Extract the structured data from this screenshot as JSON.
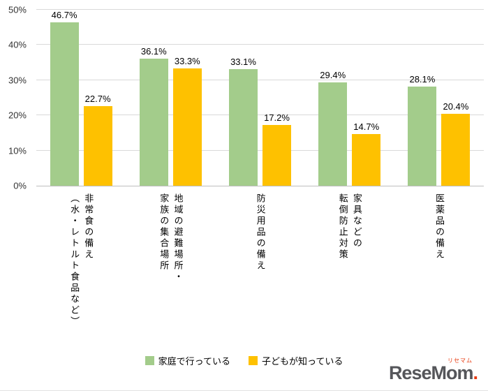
{
  "chart_data": {
    "type": "bar",
    "title": "",
    "xlabel": "",
    "ylabel": "",
    "categories": [
      "非常食の備え\n（水・レトルト食品など）",
      "地域の避難場所・\n家族の集合場所",
      "防災用品の備え",
      "家具などの\n転倒防止対策",
      "医薬品の備え"
    ],
    "series": [
      {
        "name": "家庭で行っている",
        "color": "#A3CC8B",
        "values": [
          46.7,
          36.1,
          33.1,
          29.4,
          28.1
        ]
      },
      {
        "name": "子どもが知っている",
        "color": "#FEC100",
        "values": [
          22.7,
          33.3,
          17.2,
          14.7,
          20.4
        ]
      }
    ],
    "ylim": [
      0,
      50
    ],
    "yticks": [
      "0%",
      "10%",
      "20%",
      "30%",
      "40%",
      "50%"
    ],
    "value_suffix": "%",
    "grid": true,
    "legend_position": "bottom"
  },
  "logo": {
    "text": "ReseMom",
    "dot": ".",
    "sub": "リセマム",
    "text_color": "#55565A",
    "dot_color": "#E8380D"
  }
}
